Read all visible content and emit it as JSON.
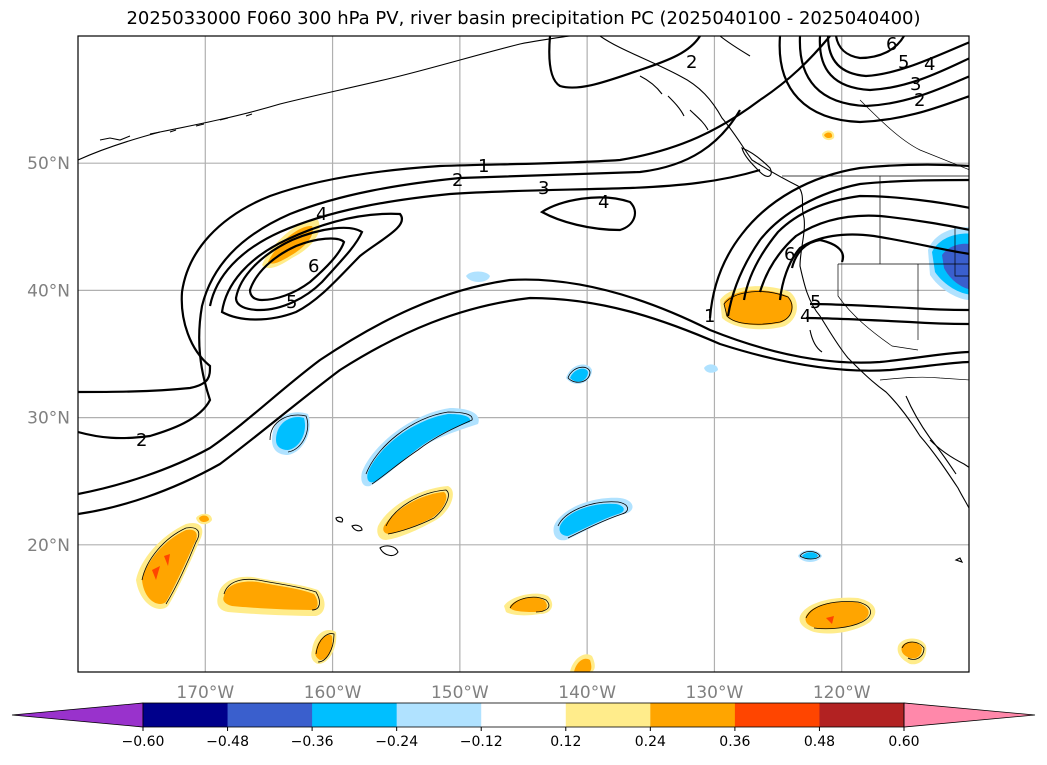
{
  "title": "2025033000 F060 300 hPa PV, river basin precipitation PC (2025040100 - 2025040400)",
  "lat_labels": [
    {
      "label": "50°N",
      "lat": 50
    },
    {
      "label": "40°N",
      "lat": 40
    },
    {
      "label": "30°N",
      "lat": 30
    },
    {
      "label": "20°N",
      "lat": 20
    }
  ],
  "lon_labels": [
    {
      "label": "170°W",
      "lon": -170
    },
    {
      "label": "160°W",
      "lon": -160
    },
    {
      "label": "150°W",
      "lon": -150
    },
    {
      "label": "140°W",
      "lon": -140
    },
    {
      "label": "130°W",
      "lon": -130
    },
    {
      "label": "120°W",
      "lon": -120
    }
  ],
  "extent": {
    "lon_min": -180,
    "lon_max": -110,
    "lat_min": 10,
    "lat_max": 60
  },
  "contour_labels": [
    "1",
    "2",
    "3",
    "4",
    "5",
    "6"
  ],
  "colorbar": {
    "ticks": [
      "−0.60",
      "−0.48",
      "−0.36",
      "−0.24",
      "−0.12",
      "0.12",
      "0.24",
      "0.36",
      "0.48",
      "0.60"
    ],
    "colors": [
      "#9932cc",
      "#00008b",
      "#3a5fcd",
      "#00bfff",
      "#b0e2ff",
      "#ffffff",
      "#ffec8b",
      "#ffa500",
      "#ff4500",
      "#b22222",
      "#ff88aa"
    ]
  }
}
